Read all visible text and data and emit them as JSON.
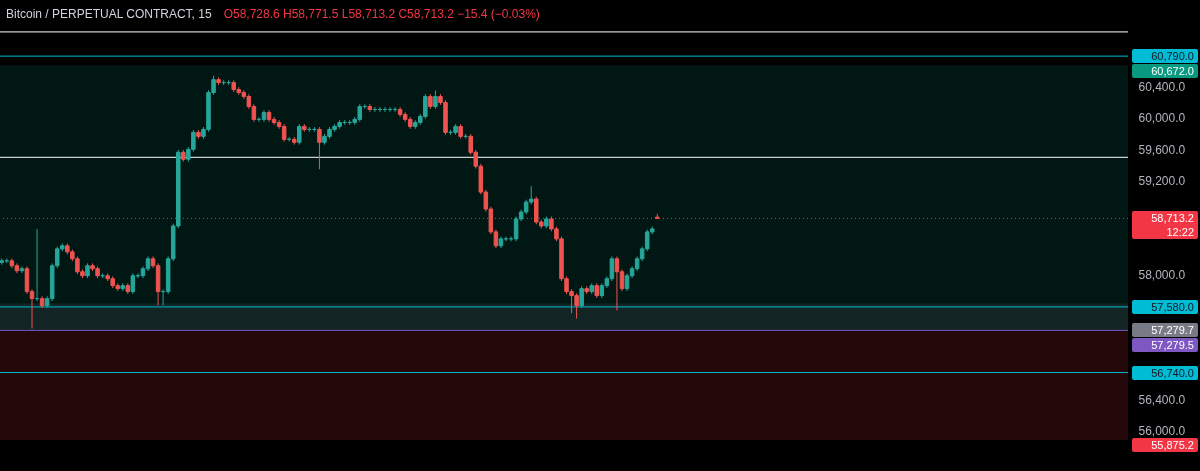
{
  "chart_data": {
    "type": "candlestick",
    "title": "Bitcoin / PERPETUAL CONTRACT, 15",
    "subtitle": "O58,728.6 H58,771.5 L58,713.2 C58,713.2 −15.4 (−0.03%)",
    "colors": [
      "#26a69a",
      "#26a69a",
      "#ef5350",
      "#ef5350",
      "#26a69a",
      "#ef5350",
      "#ef5350",
      "#26a69a",
      "#ef5350",
      "#26a69a",
      "#26a69a",
      "#26a69a",
      "#26a69a",
      "#ef5350",
      "#ef5350",
      "#ef5350",
      "#ef5350",
      "#26a69a",
      "#ef5350",
      "#ef5350",
      "#26a69a",
      "#ef5350",
      "#ef5350",
      "#ef5350",
      "#26a69a",
      "#ef5350",
      "#26a69a",
      "#26a69a",
      "#26a69a",
      "#26a69a",
      "#ef5350",
      "#ef5350",
      "#26a69a",
      "#26a69a",
      "#26a69a",
      "#26a69a",
      "#ef5350",
      "#26a69a",
      "#26a69a",
      "#ef5350",
      "#26a69a",
      "#26a69a",
      "#26a69a",
      "#ef5350",
      "#26a69a",
      "#26a69a",
      "#ef5350",
      "#ef5350",
      "#ef5350",
      "#ef5350",
      "#ef5350",
      "#26a69a",
      "#26a69a",
      "#ef5350",
      "#ef5350",
      "#ef5350",
      "#ef5350",
      "#26a69a",
      "#ef5350",
      "#26a69a",
      "#ef5350",
      "#26a69a",
      "#26a69a",
      "#ef5350",
      "#26a69a",
      "#26a69a",
      "#26a69a",
      "#26a69a",
      "#26a69a",
      "#26a69a",
      "#26a69a",
      "#26a69a",
      "#26a69a",
      "#ef5350",
      "#26a69a",
      "#26a69a",
      "#26a69a",
      "#26a69a",
      "#26a69a",
      "#ef5350",
      "#ef5350",
      "#ef5350",
      "#26a69a",
      "#26a69a",
      "#26a69a",
      "#ef5350",
      "#26a69a",
      "#ef5350",
      "#ef5350",
      "#26a69a",
      "#26a69a",
      "#ef5350",
      "#26a69a",
      "#ef5350",
      "#ef5350",
      "#ef5350",
      "#ef5350",
      "#ef5350",
      "#ef5350",
      "#26a69a",
      "#26a69a",
      "#26a69a",
      "#26a69a",
      "#26a69a",
      "#26a69a",
      "#26a69a",
      "#ef5350",
      "#ef5350",
      "#26a69a",
      "#ef5350",
      "#ef5350",
      "#ef5350",
      "#ef5350",
      "#ef5350",
      "#ef5350",
      "#26a69a",
      "#ef5350",
      "#26a69a",
      "#ef5350",
      "#26a69a",
      "#26a69a",
      "#26a69a",
      "#ef5350",
      "#ef5350",
      "#26a69a",
      "#26a69a",
      "#26a69a",
      "#26a69a",
      "#26a69a",
      "#26a69a",
      "#ef5350",
      null,
      null,
      null,
      null,
      null,
      null,
      null,
      null,
      null,
      null,
      null,
      null,
      null,
      null,
      null,
      null,
      null,
      null,
      null,
      null,
      null,
      null,
      null,
      null,
      null,
      null,
      null,
      null,
      null,
      null,
      null,
      null,
      null,
      null,
      null,
      null,
      null,
      null,
      null,
      null,
      null,
      null,
      null,
      null,
      null,
      null,
      null,
      null,
      null,
      null,
      null,
      null,
      null,
      null,
      null,
      null,
      null,
      null,
      null,
      null,
      null,
      null,
      null,
      null,
      null,
      null,
      null,
      null,
      null,
      null,
      null,
      null,
      null,
      null,
      null,
      null,
      null,
      null,
      null,
      null,
      null,
      null,
      null,
      null,
      null,
      null,
      null,
      null,
      null,
      null,
      null,
      null,
      null
    ],
    "categories": [
      null,
      null,
      null,
      null,
      null,
      null,
      null,
      null,
      null,
      null,
      null,
      null,
      null,
      null,
      null,
      null,
      null,
      null,
      null,
      null,
      null,
      null,
      null,
      null,
      null,
      null,
      null,
      null,
      null,
      null,
      null,
      null,
      null,
      null,
      null,
      null,
      null,
      null,
      null,
      null,
      null,
      null,
      null,
      null,
      null,
      null,
      null,
      null,
      null,
      null,
      null,
      null,
      null,
      null,
      null,
      null,
      null,
      null,
      null,
      null,
      null,
      null,
      null,
      null,
      null,
      null,
      null,
      null,
      null,
      null,
      null,
      null,
      null,
      null,
      null,
      null,
      null,
      null,
      null,
      null,
      null,
      null,
      null,
      null,
      null,
      null,
      null,
      null,
      null,
      null,
      null,
      null,
      null,
      null,
      null,
      null,
      null,
      null,
      null,
      null,
      null,
      null,
      null,
      null,
      null,
      null,
      null,
      null,
      null,
      null,
      null,
      null,
      null,
      null,
      null,
      null,
      null,
      null,
      null,
      null,
      null,
      null,
      null,
      null,
      null,
      null,
      null,
      null,
      null,
      null,
      null,
      null,
      null,
      null,
      null,
      null,
      null,
      null,
      null,
      null,
      null,
      null,
      null,
      null,
      null,
      null,
      null,
      null,
      null,
      null,
      null,
      null,
      null,
      null,
      null,
      null,
      null,
      null,
      null,
      null,
      null,
      null,
      null,
      null,
      null,
      null,
      null,
      null,
      null,
      null,
      null,
      null,
      null,
      null,
      null,
      null,
      null,
      null,
      null,
      null,
      null,
      null,
      null,
      null,
      null,
      null,
      null,
      null,
      null,
      null,
      null,
      null,
      null,
      null,
      null,
      null,
      null,
      null,
      null,
      null,
      null,
      null,
      null,
      null,
      null,
      null,
      null,
      null,
      null,
      null,
      null,
      null,
      null,
      null,
      null,
      null,
      null,
      null,
      null,
      null,
      null,
      null,
      null,
      null
    ],
    "ohlc": [
      [
        58150,
        58200,
        58120,
        58170
      ],
      [
        58170,
        58200,
        58140,
        58170
      ],
      [
        58170,
        58200,
        58077,
        58107
      ],
      [
        58107,
        58137,
        58013,
        58043
      ],
      [
        58043,
        58099,
        58013,
        58069
      ],
      [
        58069,
        58099,
        57746,
        57776
      ],
      [
        57776,
        57806,
        57304,
        57686
      ],
      [
        57686,
        58578,
        57656,
        57686
      ],
      [
        57686,
        57716,
        57567,
        57597
      ],
      [
        57597,
        57716,
        57567,
        57686
      ],
      [
        57686,
        58137,
        57656,
        58107
      ],
      [
        58107,
        58353,
        58077,
        58323
      ],
      [
        58323,
        58392,
        58293,
        58362
      ],
      [
        58362,
        58392,
        58255,
        58285
      ],
      [
        58285,
        58315,
        58166,
        58196
      ],
      [
        58196,
        58226,
        58000,
        58030
      ],
      [
        58030,
        58060,
        57949,
        57979
      ],
      [
        57979,
        58137,
        57949,
        58107
      ],
      [
        58107,
        58137,
        58039,
        58069
      ],
      [
        58069,
        58099,
        57949,
        57979
      ],
      [
        57979,
        58009,
        57949,
        57979
      ],
      [
        57979,
        58009,
        57911,
        57941
      ],
      [
        57941,
        57971,
        57822,
        57852
      ],
      [
        57852,
        57882,
        57784,
        57814
      ],
      [
        57814,
        57882,
        57784,
        57852
      ],
      [
        57852,
        57882,
        57746,
        57776
      ],
      [
        57776,
        58009,
        57746,
        57979
      ],
      [
        57979,
        58009,
        57949,
        57979
      ],
      [
        57979,
        58099,
        57949,
        58069
      ],
      [
        58069,
        58226,
        58039,
        58196
      ],
      [
        58196,
        58226,
        58077,
        58107
      ],
      [
        58107,
        58137,
        57600,
        57776
      ],
      [
        57776,
        57806,
        57600,
        57776
      ],
      [
        57776,
        58226,
        57746,
        58196
      ],
      [
        58196,
        58646,
        58166,
        58616
      ],
      [
        58616,
        59589,
        58586,
        59559
      ],
      [
        59559,
        59589,
        59440,
        59470
      ],
      [
        59470,
        59627,
        59440,
        59597
      ],
      [
        59597,
        59844,
        59567,
        59814
      ],
      [
        59814,
        59844,
        59733,
        59763
      ],
      [
        59763,
        59882,
        59733,
        59852
      ],
      [
        59852,
        60354,
        59822,
        60324
      ],
      [
        60324,
        60540,
        60294,
        60489
      ],
      [
        60489,
        60519,
        60421,
        60451
      ],
      [
        60451,
        60481,
        60421,
        60451
      ],
      [
        60451,
        60481,
        60421,
        60451
      ],
      [
        60451,
        60481,
        60332,
        60362
      ],
      [
        60362,
        60392,
        60294,
        60324
      ],
      [
        60324,
        60354,
        60243,
        60273
      ],
      [
        60273,
        60303,
        60115,
        60145
      ],
      [
        60145,
        60175,
        59950,
        59980
      ],
      [
        59980,
        60010,
        59950,
        59980
      ],
      [
        59980,
        60099,
        59950,
        60069
      ],
      [
        60069,
        60099,
        59950,
        59980
      ],
      [
        59980,
        60010,
        59911,
        59941
      ],
      [
        59941,
        59971,
        59860,
        59890
      ],
      [
        59890,
        59920,
        59695,
        59725
      ],
      [
        59725,
        59755,
        59695,
        59725
      ],
      [
        59725,
        59755,
        59657,
        59687
      ],
      [
        59687,
        59920,
        59657,
        59890
      ],
      [
        59890,
        59920,
        59822,
        59852
      ],
      [
        59852,
        59882,
        59822,
        59852
      ],
      [
        59852,
        59882,
        59822,
        59852
      ],
      [
        59852,
        59882,
        59343,
        59687
      ],
      [
        59687,
        59793,
        59657,
        59763
      ],
      [
        59763,
        59882,
        59733,
        59852
      ],
      [
        59852,
        59920,
        59822,
        59890
      ],
      [
        59890,
        59971,
        59860,
        59941
      ],
      [
        59941,
        59971,
        59911,
        59941
      ],
      [
        59941,
        59971,
        59911,
        59941
      ],
      [
        59941,
        60010,
        59911,
        59980
      ],
      [
        59980,
        60175,
        59950,
        60145
      ],
      [
        60145,
        60175,
        60115,
        60145
      ],
      [
        60145,
        60175,
        60077,
        60107
      ],
      [
        60107,
        60137,
        60077,
        60107
      ],
      [
        60107,
        60137,
        60077,
        60107
      ],
      [
        60107,
        60137,
        60077,
        60107
      ],
      [
        60107,
        60137,
        60077,
        60107
      ],
      [
        60107,
        60137,
        60077,
        60107
      ],
      [
        60107,
        60137,
        60013,
        60043
      ],
      [
        60043,
        60073,
        59950,
        59980
      ],
      [
        59980,
        60010,
        59860,
        59890
      ],
      [
        59890,
        59971,
        59860,
        59941
      ],
      [
        59941,
        60048,
        59911,
        60018
      ],
      [
        60018,
        60303,
        59988,
        60273
      ],
      [
        60273,
        60303,
        60115,
        60145
      ],
      [
        60145,
        60350,
        60115,
        60273
      ],
      [
        60273,
        60303,
        60166,
        60196
      ],
      [
        60196,
        60226,
        59784,
        59814
      ],
      [
        59814,
        59844,
        59784,
        59814
      ],
      [
        59814,
        59920,
        59784,
        59890
      ],
      [
        59890,
        59920,
        59733,
        59763
      ],
      [
        59763,
        59793,
        59733,
        59763
      ],
      [
        59763,
        59793,
        59529,
        59559
      ],
      [
        59559,
        59589,
        59351,
        59381
      ],
      [
        59381,
        59411,
        59020,
        59050
      ],
      [
        59050,
        59080,
        58803,
        58833
      ],
      [
        58833,
        58863,
        58510,
        58540
      ],
      [
        58540,
        58570,
        58332,
        58362
      ],
      [
        58362,
        58481,
        58332,
        58451
      ],
      [
        58451,
        58481,
        58421,
        58451
      ],
      [
        58451,
        58481,
        58421,
        58451
      ],
      [
        58451,
        58736,
        58421,
        58706
      ],
      [
        58706,
        58825,
        58676,
        58795
      ],
      [
        58795,
        58952,
        58765,
        58922
      ],
      [
        58922,
        59126,
        58892,
        58960
      ],
      [
        58960,
        58990,
        58637,
        58667
      ],
      [
        58667,
        58697,
        58586,
        58616
      ],
      [
        58616,
        58736,
        58586,
        58706
      ],
      [
        58706,
        58736,
        58548,
        58578
      ],
      [
        58578,
        58608,
        58421,
        58451
      ],
      [
        58451,
        58481,
        57911,
        57941
      ],
      [
        57941,
        57971,
        57746,
        57776
      ],
      [
        57776,
        57806,
        57500,
        57725
      ],
      [
        57725,
        57755,
        57431,
        57597
      ],
      [
        57597,
        57844,
        57567,
        57814
      ],
      [
        57814,
        57844,
        57746,
        57776
      ],
      [
        57776,
        57882,
        57746,
        57852
      ],
      [
        57852,
        57882,
        57695,
        57725
      ],
      [
        57725,
        57882,
        57695,
        57852
      ],
      [
        57852,
        57971,
        57822,
        57941
      ],
      [
        57941,
        58226,
        57911,
        58196
      ],
      [
        58196,
        58226,
        57534,
        58030
      ],
      [
        58030,
        58060,
        57784,
        57814
      ],
      [
        57814,
        58009,
        57784,
        57979
      ],
      [
        57979,
        58099,
        57949,
        58069
      ],
      [
        58069,
        58226,
        58039,
        58196
      ],
      [
        58196,
        58353,
        58166,
        58323
      ],
      [
        58323,
        58570,
        58293,
        58540
      ],
      [
        58540,
        58608,
        58510,
        58578
      ],
      [
        58728.6,
        58771.5,
        58713.2,
        58713.2
      ],
      null,
      null,
      null,
      null,
      null,
      null,
      null,
      null,
      null,
      null,
      null,
      null,
      null,
      null,
      null,
      null,
      null,
      null,
      null,
      null,
      null,
      null,
      null,
      null,
      null,
      null,
      null,
      null,
      null,
      null,
      null,
      null,
      null,
      null,
      null,
      null,
      null,
      null,
      null,
      null,
      null,
      null,
      null,
      null,
      null,
      null,
      null,
      null,
      null,
      null,
      null,
      null,
      null,
      null,
      null,
      null,
      null,
      null,
      null,
      null,
      null,
      null,
      null,
      null,
      null,
      null,
      null,
      null,
      null,
      null,
      null,
      null,
      null,
      null,
      null,
      null,
      null,
      null,
      null,
      null,
      null,
      null,
      null,
      null,
      null,
      null,
      null,
      null,
      null,
      null,
      null,
      null,
      null
    ],
    "ylim": [
      55710,
      61150
    ],
    "yticks": [
      {
        "value": 56000,
        "label": "56,000.0"
      },
      {
        "value": 56400,
        "label": "56,400.0"
      },
      {
        "value": 58000,
        "label": "58,000.0"
      },
      {
        "value": 59200,
        "label": "59,200.0"
      },
      {
        "value": 59600,
        "label": "59,600.0"
      },
      {
        "value": 60000,
        "label": "60,000.0"
      },
      {
        "value": 60400,
        "label": "60,400.0"
      }
    ],
    "tick_labels": "y",
    "bands": [
      {
        "axis": "y",
        "from": 57279.5,
        "to": 60672,
        "label": "60,672.0",
        "color": "#089981"
      },
      {
        "axis": "y",
        "from": 55875.2,
        "to": 57279.5,
        "label": "55,875.2",
        "color": "#f23645"
      },
      {
        "axis": "y",
        "from": 57279.7,
        "to": 57623,
        "label": "57,279.7",
        "color": "#787b86"
      }
    ],
    "ref_lines": [
      {
        "axis": "y",
        "value": 61100,
        "color": "#ffffff",
        "line_style": "solid"
      },
      {
        "axis": "y",
        "value": 60790,
        "label": "60,790.0",
        "color": "#00bcd4",
        "line_style": "solid"
      },
      {
        "axis": "y",
        "value": 59495,
        "color": "#ffffff",
        "line_style": "solid"
      },
      {
        "axis": "y",
        "value": 58713.2,
        "label": "58,713.2\n12:22",
        "color": "#f23645",
        "line_style": "dotted"
      },
      {
        "axis": "y",
        "value": 57580,
        "label": "57,580.0",
        "color": "#00bcd4",
        "line_style": "solid"
      },
      {
        "axis": "y",
        "value": 57279.5,
        "label": "57,279.5",
        "color": "#7e57c2",
        "line_style": "solid"
      },
      {
        "axis": "y",
        "value": 56740,
        "label": "56,740.0",
        "color": "#00bcd4",
        "line_style": "solid"
      }
    ]
  }
}
